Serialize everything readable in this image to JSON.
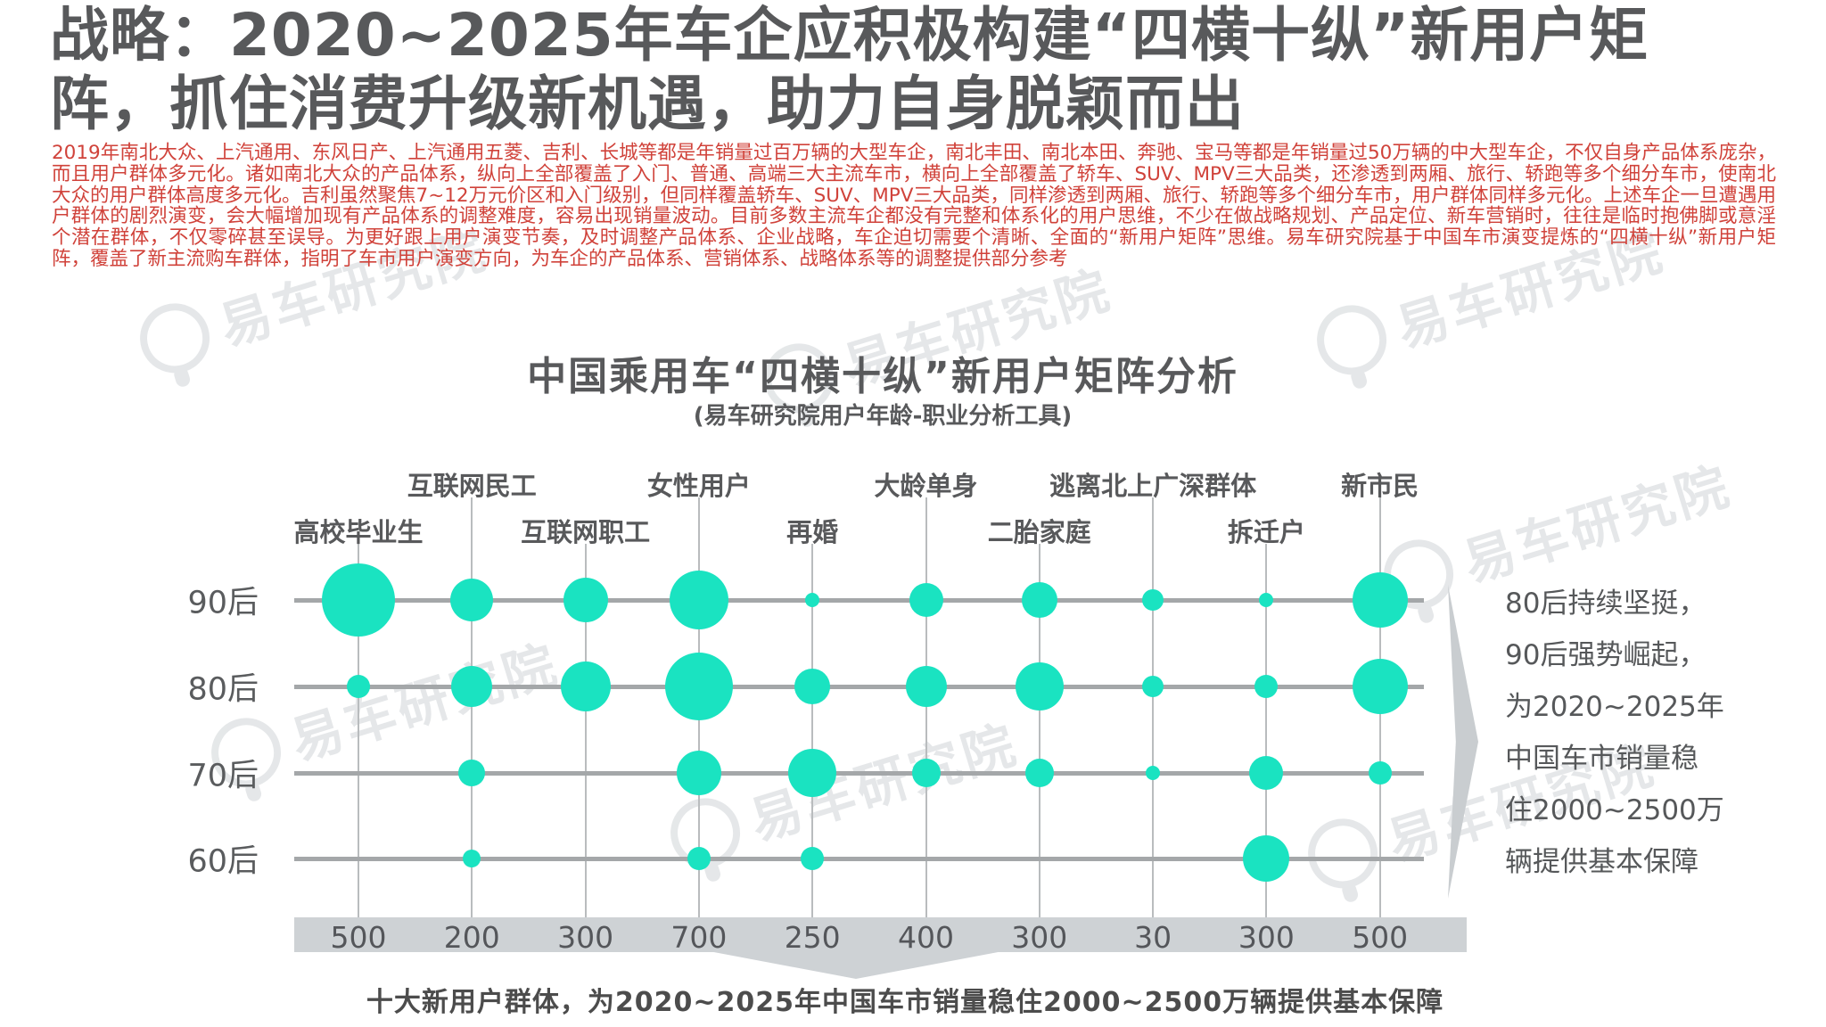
{
  "title": {
    "line1": "战略：2020~2025年车企应积极构建“四横十纵”新用户矩",
    "line2": "阵，抓住消费升级新机遇，助力自身脱颖而出"
  },
  "intro_paragraph": "2019年南北大众、上汽通用、东风日产、上汽通用五菱、吉利、长城等都是年销量过百万辆的大型车企，南北丰田、南北本田、奔驰、宝马等都是年销量过50万辆的中大型车企，不仅自身产品体系庞杂，而且用户群体多元化。诸如南北大众的产品体系，纵向上全部覆盖了入门、普通、高端三大主流车市，横向上全部覆盖了轿车、SUV、MPV三大品类，还渗透到两厢、旅行、轿跑等多个细分车市，使南北大众的用户群体高度多元化。吉利虽然聚焦7~12万元价区和入门级别，但同样覆盖轿车、SUV、MPV三大品类，同样渗透到两厢、旅行、轿跑等多个细分车市，用户群体同样多元化。上述车企一旦遭遇用户群体的剧烈演变，会大幅增加现有产品体系的调整难度，容易出现销量波动。目前多数主流车企都没有完整和体系化的用户思维，不少在做战略规划、产品定位、新车营销时，往往是临时抱佛脚或意淫个潜在群体，不仅零碎甚至误导。为更好跟上用户演变节奏，及时调整产品体系、企业战略，车企迫切需要个清晰、全面的“新用户矩阵”思维。易车研究院基于中国车市演变提炼的“四横十纵”新用户矩阵，覆盖了新主流购车群体，指明了车市用户演变方向，为车企的产品体系、营销体系、战略体系等的调整提供部分参考",
  "chart": {
    "title": "中国乘用车“四横十纵”新用户矩阵分析",
    "subtitle": "(易车研究院用户年龄-职业分析工具)",
    "annotation_right": [
      "80后持续坚挺，",
      "90后强势崛起，",
      "为2020~2025年",
      "中国车市销量稳",
      "住2000~2500万",
      "辆提供基本保障"
    ],
    "caption_bottom": "十大新用户群体，为2020~2025年中国车市销量稳住2000~2500万辆提供基本保障"
  },
  "chart_data": {
    "type": "scatter",
    "subtype": "bubble-matrix",
    "title": "中国乘用车“四横十纵”新用户矩阵分析",
    "subtitle": "(易车研究院用户年龄-职业分析工具)",
    "categories": [
      "高校毕业生",
      "互联网民工",
      "互联网职工",
      "女性用户",
      "再婚",
      "大龄单身",
      "二胎家庭",
      "逃离北上广深群体",
      "拆迁户",
      "新市民"
    ],
    "category_values": [
      500,
      200,
      300,
      700,
      250,
      400,
      300,
      30,
      300,
      500
    ],
    "category_label_row": [
      "lower",
      "upper",
      "lower",
      "upper",
      "lower",
      "upper",
      "lower",
      "upper",
      "lower",
      "upper"
    ],
    "rows": [
      "90后",
      "80后",
      "70后",
      "60后"
    ],
    "series": [
      {
        "name": "90后",
        "bubble_radius_px": [
          41,
          24,
          25,
          33,
          8,
          19,
          20,
          12,
          8,
          31
        ]
      },
      {
        "name": "80后",
        "bubble_radius_px": [
          13,
          23,
          28,
          38,
          20,
          23,
          27,
          12,
          13,
          31
        ]
      },
      {
        "name": "70后",
        "bubble_radius_px": [
          0,
          15,
          0,
          25,
          27,
          16,
          16,
          8,
          19,
          13
        ]
      },
      {
        "name": "60后",
        "bubble_radius_px": [
          0,
          10,
          0,
          13,
          13,
          0,
          0,
          0,
          26,
          0
        ]
      }
    ],
    "grid": "matrix of horizontal age-row lines and vertical group lines",
    "legend_position": "none"
  },
  "watermark": {
    "text": "易车研究院"
  },
  "colors": {
    "title_gray": "#58595b",
    "intro_red": "#d0423a",
    "bubble_teal": "#1ae3c1",
    "row_line_gray": "#a4a7a9",
    "axis_band_gray": "#ced2d5",
    "watermark_gray": "#ccd1d4"
  }
}
